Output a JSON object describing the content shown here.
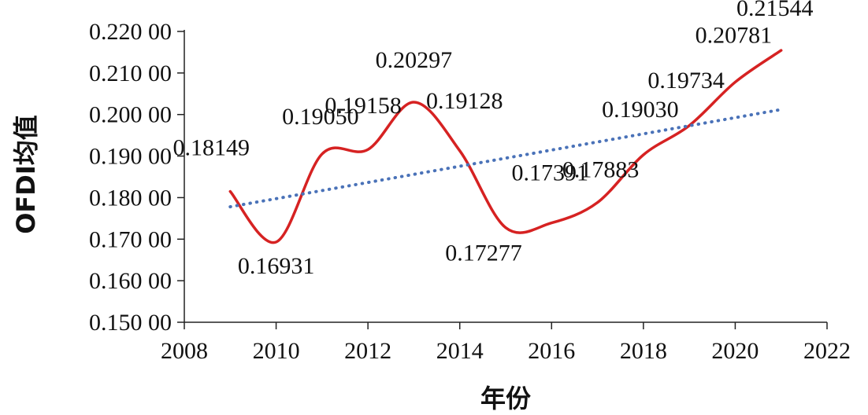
{
  "chart_data": {
    "type": "line",
    "xlabel": "年份",
    "ylabel": "OFDI均值",
    "xlim": [
      2008,
      2022
    ],
    "ylim": [
      0.15,
      0.22
    ],
    "x_ticks": [
      2008,
      2010,
      2012,
      2014,
      2016,
      2018,
      2020,
      2022
    ],
    "x_tick_labels": [
      "2008",
      "2010",
      "2012",
      "2014",
      "2016",
      "2018",
      "2020",
      "2022"
    ],
    "y_ticks": [
      0.15,
      0.16,
      0.17,
      0.18,
      0.19,
      0.2,
      0.21,
      0.22
    ],
    "y_tick_labels": [
      "0.150 00",
      "0.160 00",
      "0.170 00",
      "0.180 00",
      "0.190 00",
      "0.200 00",
      "0.210 00",
      "0.220 00"
    ],
    "grid": false,
    "legend": "none",
    "series": [
      {
        "style": "smooth-line",
        "color": "#d62222",
        "x": [
          2009,
          2010,
          2011,
          2012,
          2013,
          2014,
          2015,
          2016,
          2017,
          2018,
          2019,
          2020,
          2021
        ],
        "values": [
          0.18149,
          0.16931,
          0.1905,
          0.19158,
          0.20297,
          0.19128,
          0.17277,
          0.17391,
          0.17883,
          0.1903,
          0.19734,
          0.20781,
          0.21544
        ],
        "data_labels": [
          "0.18149",
          "0.16931",
          "0.19050",
          "0.19158",
          "0.20297",
          "0.19128",
          "0.17277",
          "0.17391",
          "0.17883",
          "0.19030",
          "0.19734",
          "0.20781",
          "0.21544"
        ]
      },
      {
        "style": "dotted-trendline",
        "color": "#4a72b8",
        "x": [
          2009,
          2021
        ],
        "values": [
          0.1778,
          0.2012
        ]
      }
    ]
  }
}
